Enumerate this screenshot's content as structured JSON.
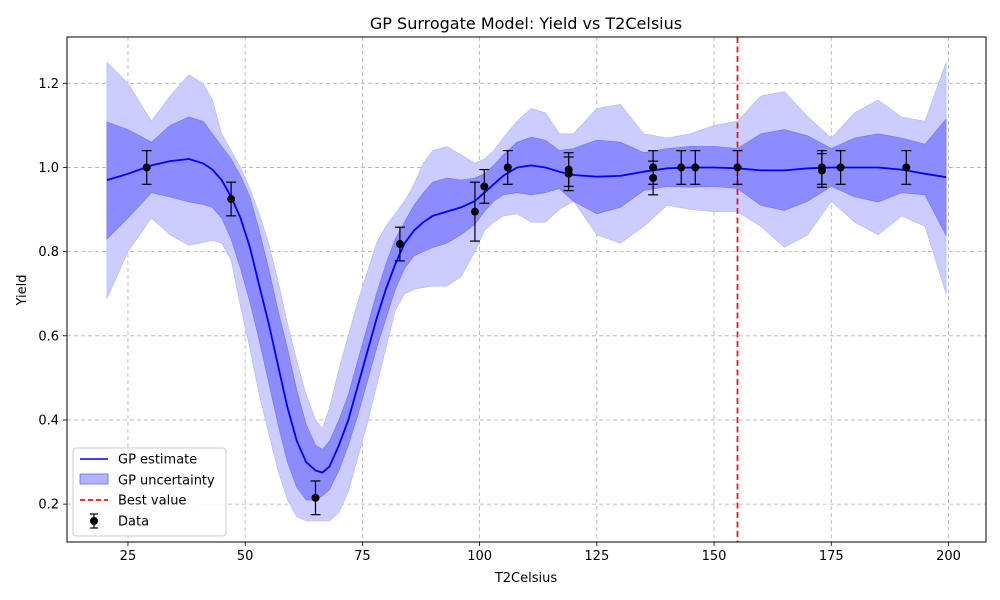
{
  "chart_data": {
    "type": "line",
    "title": "GP Surrogate Model: Yield vs T2Celsius",
    "xlabel": "T2Celsius",
    "ylabel": "Yield",
    "xlim": [
      12,
      208
    ],
    "ylim": [
      0.11,
      1.31
    ],
    "xticks": [
      25,
      50,
      75,
      100,
      125,
      150,
      175,
      200
    ],
    "yticks": [
      0.2,
      0.4,
      0.6,
      0.8,
      1.0,
      1.2
    ],
    "xtick_labels": [
      "25",
      "50",
      "75",
      "100",
      "125",
      "150",
      "175",
      "200"
    ],
    "ytick_labels": [
      "0.2",
      "0.4",
      "0.6",
      "0.8",
      "1.0",
      "1.2"
    ],
    "grid": true,
    "legend_position": "lower-left",
    "legend": [
      "GP estimate",
      "GP uncertainty",
      "Best value",
      "Data"
    ],
    "series": [
      {
        "name": "GP estimate",
        "color": "#0000ff",
        "x": [
          20.5,
          25,
          30,
          34,
          38,
          41,
          43,
          45,
          47,
          49,
          51,
          53,
          55,
          57,
          59,
          61,
          63,
          65,
          66.5,
          68,
          70,
          72,
          74,
          76,
          78,
          80,
          82,
          84,
          86,
          88,
          90,
          93,
          96,
          99,
          101,
          103,
          105,
          108,
          111,
          114,
          117,
          120,
          125,
          130,
          135,
          140,
          145,
          150,
          155,
          160,
          165,
          170,
          175,
          180,
          185,
          190,
          195,
          199.5
        ],
        "mean": [
          0.97,
          0.985,
          1.005,
          1.015,
          1.02,
          1.01,
          0.995,
          0.97,
          0.93,
          0.88,
          0.81,
          0.72,
          0.63,
          0.53,
          0.43,
          0.35,
          0.3,
          0.28,
          0.275,
          0.29,
          0.34,
          0.4,
          0.48,
          0.56,
          0.64,
          0.71,
          0.77,
          0.82,
          0.85,
          0.87,
          0.885,
          0.895,
          0.905,
          0.92,
          0.94,
          0.96,
          0.98,
          1.0,
          1.005,
          1.0,
          0.99,
          0.982,
          0.978,
          0.98,
          0.99,
          0.998,
          1.0,
          1.0,
          0.998,
          0.993,
          0.993,
          0.998,
          1.0,
          1.0,
          1.0,
          0.995,
          0.985,
          0.977
        ],
        "inner_lower": [
          0.83,
          0.88,
          0.94,
          0.93,
          0.918,
          0.912,
          0.905,
          0.88,
          0.83,
          0.76,
          0.68,
          0.59,
          0.49,
          0.39,
          0.3,
          0.24,
          0.21,
          0.21,
          0.22,
          0.235,
          0.28,
          0.34,
          0.41,
          0.49,
          0.57,
          0.64,
          0.71,
          0.76,
          0.79,
          0.8,
          0.81,
          0.82,
          0.84,
          0.865,
          0.895,
          0.92,
          0.935,
          0.94,
          0.935,
          0.94,
          0.95,
          0.92,
          0.89,
          0.905,
          0.945,
          0.955,
          0.953,
          0.955,
          0.95,
          0.91,
          0.898,
          0.92,
          0.955,
          0.93,
          0.918,
          0.94,
          0.935,
          0.838
        ],
        "inner_upper": [
          1.108,
          1.09,
          1.06,
          1.1,
          1.12,
          1.11,
          1.08,
          1.05,
          1.02,
          0.98,
          0.93,
          0.85,
          0.76,
          0.66,
          0.57,
          0.47,
          0.39,
          0.34,
          0.33,
          0.35,
          0.4,
          0.46,
          0.54,
          0.62,
          0.7,
          0.77,
          0.83,
          0.87,
          0.91,
          0.94,
          0.965,
          0.975,
          0.97,
          0.975,
          0.985,
          1.005,
          1.03,
          1.06,
          1.072,
          1.065,
          1.04,
          1.045,
          1.065,
          1.06,
          1.035,
          1.045,
          1.05,
          1.05,
          1.045,
          1.08,
          1.09,
          1.075,
          1.045,
          1.07,
          1.08,
          1.07,
          1.055,
          1.115
        ],
        "outer_lower": [
          0.688,
          0.8,
          0.88,
          0.84,
          0.815,
          0.822,
          0.827,
          0.82,
          0.78,
          0.67,
          0.57,
          0.46,
          0.37,
          0.28,
          0.21,
          0.17,
          0.16,
          0.16,
          0.16,
          0.16,
          0.18,
          0.23,
          0.31,
          0.39,
          0.48,
          0.57,
          0.66,
          0.7,
          0.71,
          0.715,
          0.718,
          0.718,
          0.74,
          0.8,
          0.85,
          0.87,
          0.885,
          0.89,
          0.87,
          0.87,
          0.9,
          0.92,
          0.84,
          0.82,
          0.86,
          0.91,
          0.9,
          0.895,
          0.895,
          0.86,
          0.81,
          0.84,
          0.92,
          0.87,
          0.84,
          0.885,
          0.86,
          0.7
        ],
        "outer_upper": [
          1.25,
          1.2,
          1.11,
          1.17,
          1.22,
          1.2,
          1.16,
          1.08,
          1.04,
          1.0,
          0.95,
          0.89,
          0.82,
          0.73,
          0.63,
          0.54,
          0.46,
          0.4,
          0.38,
          0.43,
          0.52,
          0.6,
          0.68,
          0.75,
          0.82,
          0.86,
          0.89,
          0.92,
          0.96,
          1.01,
          1.04,
          1.05,
          1.03,
          1.01,
          1.02,
          1.04,
          1.07,
          1.11,
          1.14,
          1.13,
          1.08,
          1.08,
          1.14,
          1.15,
          1.08,
          1.07,
          1.08,
          1.1,
          1.11,
          1.17,
          1.18,
          1.12,
          1.07,
          1.13,
          1.16,
          1.12,
          1.11,
          1.25
        ]
      },
      {
        "name": "Best value",
        "color": "#e41a1c",
        "type": "vline",
        "x": 155
      },
      {
        "name": "Data",
        "color": "#000000",
        "type": "errorbar",
        "x": [
          29,
          47,
          65,
          83,
          99,
          101,
          106,
          119,
          119,
          137,
          137,
          143,
          146,
          155,
          173,
          173,
          177,
          191
        ],
        "y": [
          1.0,
          0.925,
          0.215,
          0.818,
          0.895,
          0.955,
          1.0,
          0.995,
          0.985,
          1.0,
          0.975,
          1.0,
          1.0,
          1.0,
          1.0,
          0.993,
          1.0,
          1.0
        ],
        "yerr": [
          0.04,
          0.04,
          0.04,
          0.04,
          0.07,
          0.04,
          0.04,
          0.04,
          0.04,
          0.04,
          0.04,
          0.04,
          0.04,
          0.04,
          0.04,
          0.04,
          0.04,
          0.04
        ]
      }
    ],
    "colors": {
      "outer_band": "#ccccff",
      "inner_band": "#8c8cff",
      "mean": "#0000ff",
      "best": "#e41a1c",
      "data": "#000000",
      "grid": "#b0b0b0"
    }
  }
}
